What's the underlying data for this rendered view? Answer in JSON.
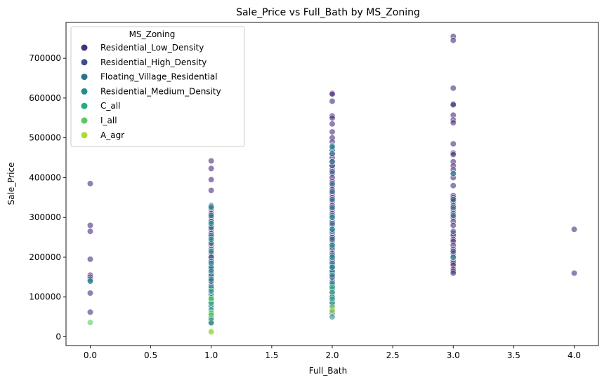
{
  "chart_data": {
    "type": "scatter",
    "title": "Sale_Price vs Full_Bath by MS_Zoning",
    "xlabel": "Full_Bath",
    "ylabel": "Sale_Price",
    "xlim": [
      -0.2,
      4.2
    ],
    "ylim": [
      -22000,
      790000
    ],
    "xticks": [
      0.0,
      0.5,
      1.0,
      1.5,
      2.0,
      2.5,
      3.0,
      3.5,
      4.0
    ],
    "xtick_labels": [
      "0.0",
      "0.5",
      "1.0",
      "1.5",
      "2.0",
      "2.5",
      "3.0",
      "3.5",
      "4.0"
    ],
    "yticks": [
      0,
      100000,
      200000,
      300000,
      400000,
      500000,
      600000,
      700000
    ],
    "ytick_labels": [
      "0",
      "100000",
      "200000",
      "300000",
      "400000",
      "500000",
      "600000",
      "700000"
    ],
    "grid": false,
    "legend": {
      "title": "MS_Zoning",
      "placement": "upper-left"
    },
    "series": [
      {
        "name": "Residential_Low_Density",
        "color": "#472d7b",
        "points": [
          [
            0,
            385000
          ],
          [
            0,
            280000
          ],
          [
            0,
            265000
          ],
          [
            0,
            195000
          ],
          [
            0,
            155000
          ],
          [
            0,
            150000
          ],
          [
            0,
            145000
          ],
          [
            0,
            110000
          ],
          [
            0,
            62000
          ],
          [
            1,
            442000
          ],
          [
            1,
            423000
          ],
          [
            1,
            395000
          ],
          [
            1,
            368000
          ],
          [
            1,
            330000
          ],
          [
            1,
            320000
          ],
          [
            1,
            310000
          ],
          [
            1,
            300000
          ],
          [
            1,
            290000
          ],
          [
            1,
            280000
          ],
          [
            1,
            270000
          ],
          [
            1,
            260000
          ],
          [
            1,
            250000
          ],
          [
            1,
            240000
          ],
          [
            1,
            230000
          ],
          [
            1,
            220000
          ],
          [
            1,
            210000
          ],
          [
            1,
            200000
          ],
          [
            1,
            190000
          ],
          [
            1,
            180000
          ],
          [
            1,
            170000
          ],
          [
            1,
            160000
          ],
          [
            1,
            150000
          ],
          [
            1,
            140000
          ],
          [
            1,
            130000
          ],
          [
            1,
            120000
          ],
          [
            1,
            110000
          ],
          [
            1,
            100000
          ],
          [
            1,
            90000
          ],
          [
            1,
            80000
          ],
          [
            1,
            65000
          ],
          [
            1,
            50000
          ],
          [
            1,
            40000
          ],
          [
            1,
            35000
          ],
          [
            2,
            612000
          ],
          [
            2,
            610000
          ],
          [
            2,
            592000
          ],
          [
            2,
            555000
          ],
          [
            2,
            550000
          ],
          [
            2,
            535000
          ],
          [
            2,
            515000
          ],
          [
            2,
            500000
          ],
          [
            2,
            490000
          ],
          [
            2,
            480000
          ],
          [
            2,
            470000
          ],
          [
            2,
            460000
          ],
          [
            2,
            450000
          ],
          [
            2,
            440000
          ],
          [
            2,
            430000
          ],
          [
            2,
            420000
          ],
          [
            2,
            410000
          ],
          [
            2,
            400000
          ],
          [
            2,
            390000
          ],
          [
            2,
            380000
          ],
          [
            2,
            370000
          ],
          [
            2,
            360000
          ],
          [
            2,
            350000
          ],
          [
            2,
            340000
          ],
          [
            2,
            330000
          ],
          [
            2,
            320000
          ],
          [
            2,
            310000
          ],
          [
            2,
            300000
          ],
          [
            2,
            290000
          ],
          [
            2,
            280000
          ],
          [
            2,
            270000
          ],
          [
            2,
            260000
          ],
          [
            2,
            250000
          ],
          [
            2,
            240000
          ],
          [
            2,
            230000
          ],
          [
            2,
            220000
          ],
          [
            2,
            210000
          ],
          [
            2,
            200000
          ],
          [
            2,
            190000
          ],
          [
            2,
            180000
          ],
          [
            2,
            170000
          ],
          [
            2,
            160000
          ],
          [
            2,
            150000
          ],
          [
            2,
            140000
          ],
          [
            2,
            130000
          ],
          [
            2,
            120000
          ],
          [
            2,
            110000
          ],
          [
            2,
            100000
          ],
          [
            2,
            90000
          ],
          [
            2,
            80000
          ],
          [
            2,
            65000
          ],
          [
            2,
            60000
          ],
          [
            3,
            755000
          ],
          [
            3,
            745000
          ],
          [
            3,
            625000
          ],
          [
            3,
            585000
          ],
          [
            3,
            583000
          ],
          [
            3,
            557000
          ],
          [
            3,
            545000
          ],
          [
            3,
            538000
          ],
          [
            3,
            485000
          ],
          [
            3,
            462000
          ],
          [
            3,
            458000
          ],
          [
            3,
            440000
          ],
          [
            3,
            430000
          ],
          [
            3,
            420000
          ],
          [
            3,
            410000
          ],
          [
            3,
            400000
          ],
          [
            3,
            380000
          ],
          [
            3,
            355000
          ],
          [
            3,
            350000
          ],
          [
            3,
            345000
          ],
          [
            3,
            340000
          ],
          [
            3,
            330000
          ],
          [
            3,
            320000
          ],
          [
            3,
            310000
          ],
          [
            3,
            300000
          ],
          [
            3,
            290000
          ],
          [
            3,
            280000
          ],
          [
            3,
            260000
          ],
          [
            3,
            255000
          ],
          [
            3,
            245000
          ],
          [
            3,
            240000
          ],
          [
            3,
            230000
          ],
          [
            3,
            220000
          ],
          [
            3,
            210000
          ],
          [
            3,
            200000
          ],
          [
            3,
            190000
          ],
          [
            3,
            185000
          ],
          [
            3,
            180000
          ],
          [
            3,
            170000
          ],
          [
            3,
            165000
          ],
          [
            3,
            160000
          ],
          [
            4,
            270000
          ],
          [
            4,
            160000
          ]
        ]
      },
      {
        "name": "Residential_High_Density",
        "color": "#3b518b",
        "points": [
          [
            1,
            250000
          ],
          [
            1,
            200000
          ],
          [
            1,
            170000
          ],
          [
            1,
            140000
          ],
          [
            1,
            120000
          ],
          [
            1,
            90000
          ],
          [
            2,
            470000
          ],
          [
            2,
            430000
          ],
          [
            2,
            250000
          ],
          [
            2,
            195000
          ],
          [
            2,
            150000
          ],
          [
            3,
            265000
          ],
          [
            3,
            215000
          ]
        ]
      },
      {
        "name": "Floating_Village_Residential",
        "color": "#2c718e",
        "points": [
          [
            0,
            140000
          ],
          [
            1,
            328000
          ],
          [
            1,
            305000
          ],
          [
            1,
            290000
          ],
          [
            1,
            275000
          ],
          [
            1,
            255000
          ],
          [
            1,
            235000
          ],
          [
            1,
            190000
          ],
          [
            1,
            175000
          ],
          [
            1,
            155000
          ],
          [
            2,
            475000
          ],
          [
            2,
            460000
          ],
          [
            2,
            440000
          ],
          [
            2,
            415000
          ],
          [
            2,
            385000
          ],
          [
            2,
            365000
          ],
          [
            2,
            345000
          ],
          [
            2,
            325000
          ],
          [
            2,
            305000
          ],
          [
            2,
            285000
          ],
          [
            2,
            265000
          ],
          [
            2,
            245000
          ],
          [
            2,
            225000
          ],
          [
            2,
            205000
          ],
          [
            2,
            185000
          ],
          [
            2,
            175000
          ],
          [
            2,
            165000
          ],
          [
            3,
            345000
          ],
          [
            3,
            325000
          ],
          [
            3,
            305000
          ]
        ]
      },
      {
        "name": "Residential_Medium_Density",
        "color": "#21908d",
        "points": [
          [
            0,
            140000
          ],
          [
            1,
            325000
          ],
          [
            1,
            285000
          ],
          [
            1,
            245000
          ],
          [
            1,
            215000
          ],
          [
            1,
            185000
          ],
          [
            1,
            165000
          ],
          [
            1,
            145000
          ],
          [
            1,
            125000
          ],
          [
            1,
            105000
          ],
          [
            1,
            98000
          ],
          [
            1,
            88000
          ],
          [
            1,
            75000
          ],
          [
            1,
            62000
          ],
          [
            1,
            55000
          ],
          [
            2,
            478000
          ],
          [
            2,
            300000
          ],
          [
            2,
            270000
          ],
          [
            2,
            230000
          ],
          [
            2,
            200000
          ],
          [
            2,
            175000
          ],
          [
            2,
            155000
          ],
          [
            2,
            135000
          ],
          [
            2,
            120000
          ],
          [
            2,
            100000
          ],
          [
            2,
            85000
          ],
          [
            2,
            50000
          ],
          [
            3,
            410000
          ],
          [
            3,
            200000
          ]
        ]
      },
      {
        "name": "C_all",
        "color": "#27ad81",
        "points": [
          [
            1,
            115000
          ],
          [
            1,
            95000
          ],
          [
            1,
            85000
          ],
          [
            1,
            68000
          ],
          [
            1,
            58000
          ],
          [
            1,
            45000
          ],
          [
            1,
            35000
          ],
          [
            2,
            125000
          ],
          [
            2,
            112000
          ],
          [
            2,
            95000
          ],
          [
            2,
            68000
          ]
        ]
      },
      {
        "name": "I_all",
        "color": "#5cc863",
        "points": [
          [
            0,
            36000
          ],
          [
            1,
            95000
          ],
          [
            1,
            60000
          ],
          [
            1,
            55000
          ],
          [
            1,
            14000
          ],
          [
            2,
            75000
          ]
        ]
      },
      {
        "name": "A_agr",
        "color": "#aadc32",
        "points": [
          [
            1,
            12000
          ],
          [
            2,
            65000
          ]
        ]
      }
    ]
  }
}
